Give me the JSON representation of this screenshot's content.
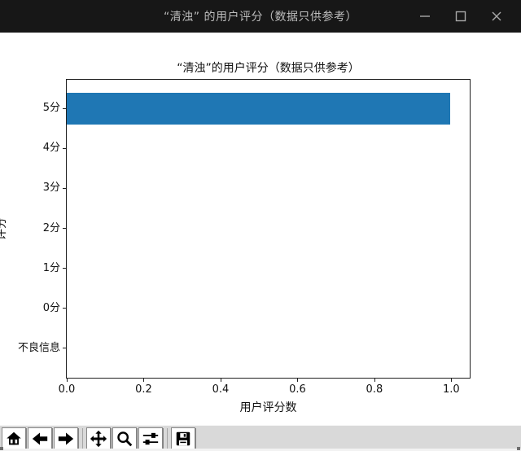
{
  "window": {
    "title": "“清浊” 的用户评分（数据只供参考）",
    "controls": [
      {
        "name": "minimize",
        "icon": "minimize-icon"
      },
      {
        "name": "maximize",
        "icon": "maximize-icon"
      },
      {
        "name": "close",
        "icon": "close-icon"
      }
    ]
  },
  "chart_data": {
    "type": "bar",
    "orientation": "horizontal",
    "title": "“清浊”的用户评分（数据只供参考）",
    "xlabel": "用户评分数",
    "ylabel": "评分",
    "categories": [
      "不良信息",
      "0分",
      "1分",
      "2分",
      "3分",
      "4分",
      "5分"
    ],
    "values": [
      0,
      0,
      0,
      0,
      0,
      0,
      1
    ],
    "x_ticks": [
      "0.0",
      "0.2",
      "0.4",
      "0.6",
      "0.8",
      "1.0"
    ],
    "xlim": [
      0,
      1.05
    ],
    "bar_color": "#1f77b4",
    "grid": false,
    "legend": "none"
  },
  "toolbar": {
    "buttons": [
      {
        "name": "home",
        "icon": "home-icon"
      },
      {
        "name": "back",
        "icon": "back-arrow-icon"
      },
      {
        "name": "forward",
        "icon": "forward-arrow-icon"
      },
      {
        "name": "pan",
        "icon": "pan-move-icon"
      },
      {
        "name": "zoom",
        "icon": "zoom-magnifier-icon"
      },
      {
        "name": "configure-subplots",
        "icon": "sliders-icon"
      },
      {
        "name": "save",
        "icon": "save-floppy-icon"
      }
    ]
  },
  "colors": {
    "titlebar_bg": "#171717",
    "titlebar_text": "#bdbdbd",
    "canvas_bg": "#ffffff",
    "toolbar_bg": "#d9d9d9",
    "bar_blue": "#1f77b4",
    "axis_line": "#1f1f1f"
  }
}
